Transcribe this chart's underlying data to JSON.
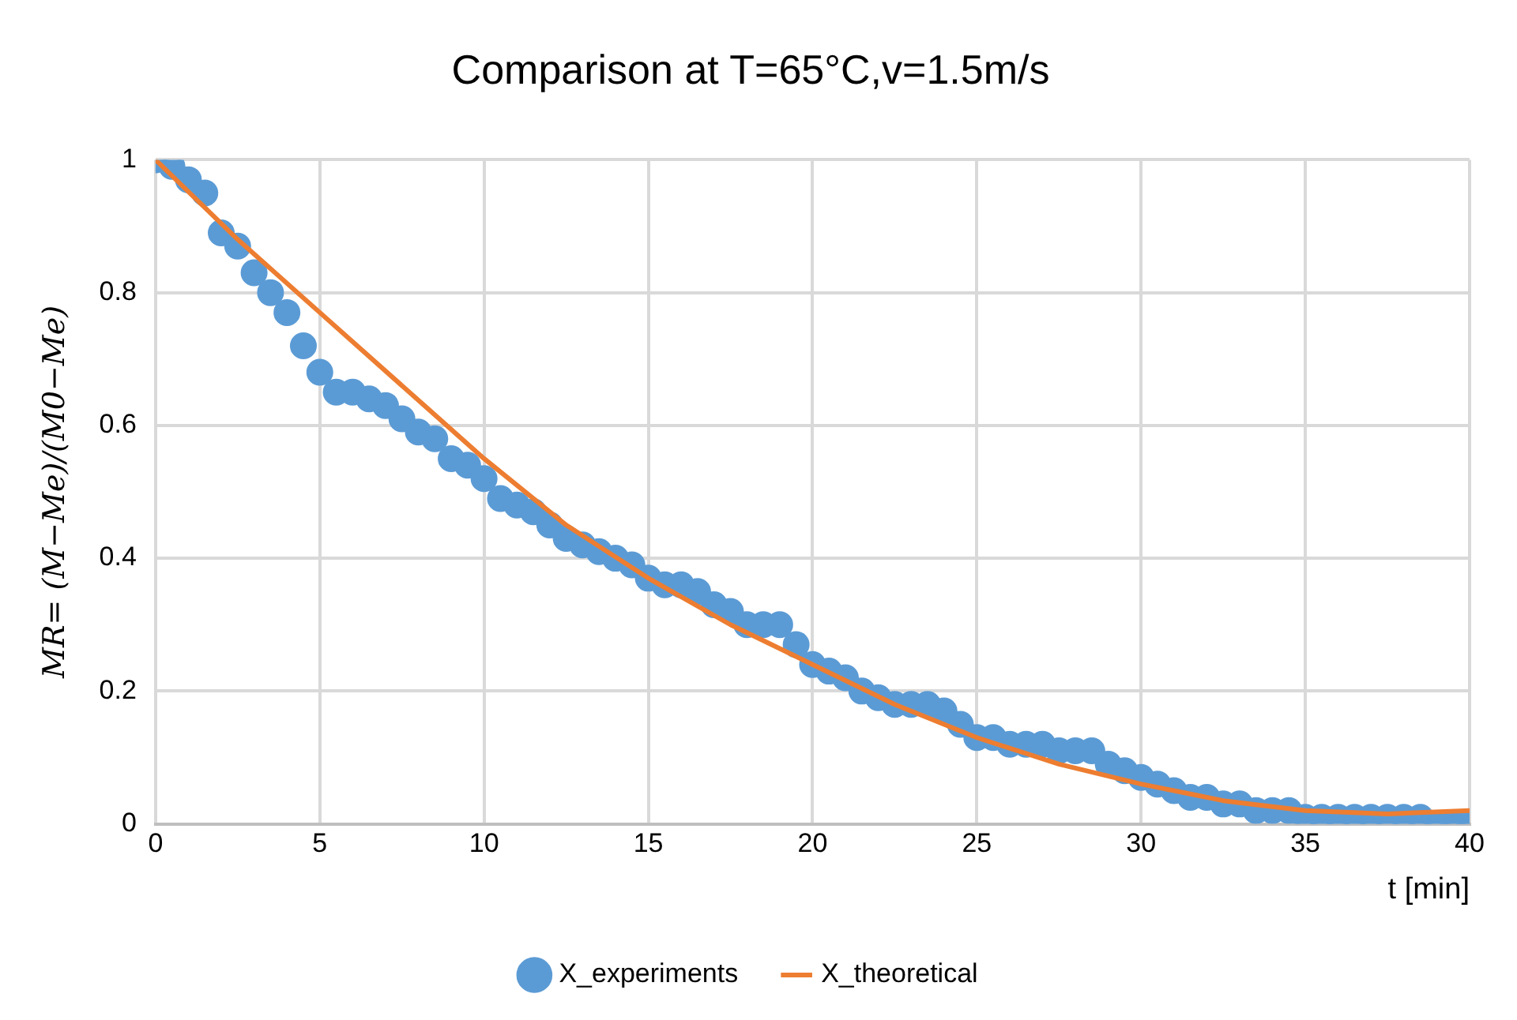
{
  "chart_data": {
    "type": "scatter",
    "title": "Comparison at T=65°C,v=1.5m/s",
    "xlabel": "t [min]",
    "ylabel": "MR= (M−Me)/(M0−Me)",
    "xlim": [
      0,
      40
    ],
    "xticks": [
      0,
      5,
      10,
      15,
      20,
      25,
      30,
      35,
      40
    ],
    "ylim": [
      0,
      1
    ],
    "yticks": [
      0,
      0.2,
      0.4,
      0.6,
      0.8,
      1
    ],
    "grid": true,
    "legend": "bottom",
    "series": [
      {
        "name": "X_experiments",
        "marker": "circle",
        "color": "#5b9bd5",
        "x": [
          0,
          0.5,
          1,
          1.5,
          2,
          2.5,
          3,
          3.5,
          4,
          4.5,
          5,
          5.5,
          6,
          6.5,
          7,
          7.5,
          8,
          8.5,
          9,
          9.5,
          10,
          10.5,
          11,
          11.5,
          12,
          12.5,
          13,
          13.5,
          14,
          14.5,
          15,
          15.5,
          16,
          16.5,
          17,
          17.5,
          18,
          18.5,
          19,
          19.5,
          20,
          20.5,
          21,
          21.5,
          22,
          22.5,
          23,
          23.5,
          24,
          24.5,
          25,
          25.5,
          26,
          26.5,
          27,
          27.5,
          28,
          28.5,
          29,
          29.5,
          30,
          30.5,
          31,
          31.5,
          32,
          32.5,
          33,
          33.5,
          34,
          34.5,
          35,
          35.5,
          36,
          36.5,
          37,
          37.5,
          38,
          38.5,
          39,
          39.5,
          40
        ],
        "values": [
          1.0,
          0.99,
          0.97,
          0.95,
          0.89,
          0.87,
          0.83,
          0.8,
          0.77,
          0.72,
          0.68,
          0.65,
          0.65,
          0.64,
          0.63,
          0.61,
          0.59,
          0.58,
          0.55,
          0.54,
          0.52,
          0.49,
          0.48,
          0.47,
          0.45,
          0.43,
          0.42,
          0.41,
          0.4,
          0.39,
          0.37,
          0.36,
          0.36,
          0.35,
          0.33,
          0.32,
          0.3,
          0.3,
          0.3,
          0.27,
          0.24,
          0.23,
          0.22,
          0.2,
          0.19,
          0.18,
          0.18,
          0.18,
          0.17,
          0.15,
          0.13,
          0.13,
          0.12,
          0.12,
          0.12,
          0.11,
          0.11,
          0.11,
          0.09,
          0.08,
          0.07,
          0.06,
          0.05,
          0.04,
          0.04,
          0.03,
          0.03,
          0.02,
          0.02,
          0.02,
          0.01,
          0.01,
          0.01,
          0.01,
          0.01,
          0.01,
          0.01,
          0.01,
          0.0,
          0.0,
          0.0
        ]
      },
      {
        "name": "X_theoretical",
        "type": "line",
        "marker": "none",
        "line_style": "solid",
        "color": "#ed7d31",
        "x": [
          0,
          2.5,
          5,
          7.5,
          10,
          12.5,
          15,
          17.5,
          20,
          22.5,
          25,
          27.5,
          30,
          32.5,
          35,
          37.5,
          40
        ],
        "values": [
          1.0,
          0.88,
          0.77,
          0.66,
          0.55,
          0.45,
          0.37,
          0.3,
          0.24,
          0.18,
          0.13,
          0.09,
          0.06,
          0.035,
          0.02,
          0.015,
          0.02
        ]
      }
    ]
  }
}
